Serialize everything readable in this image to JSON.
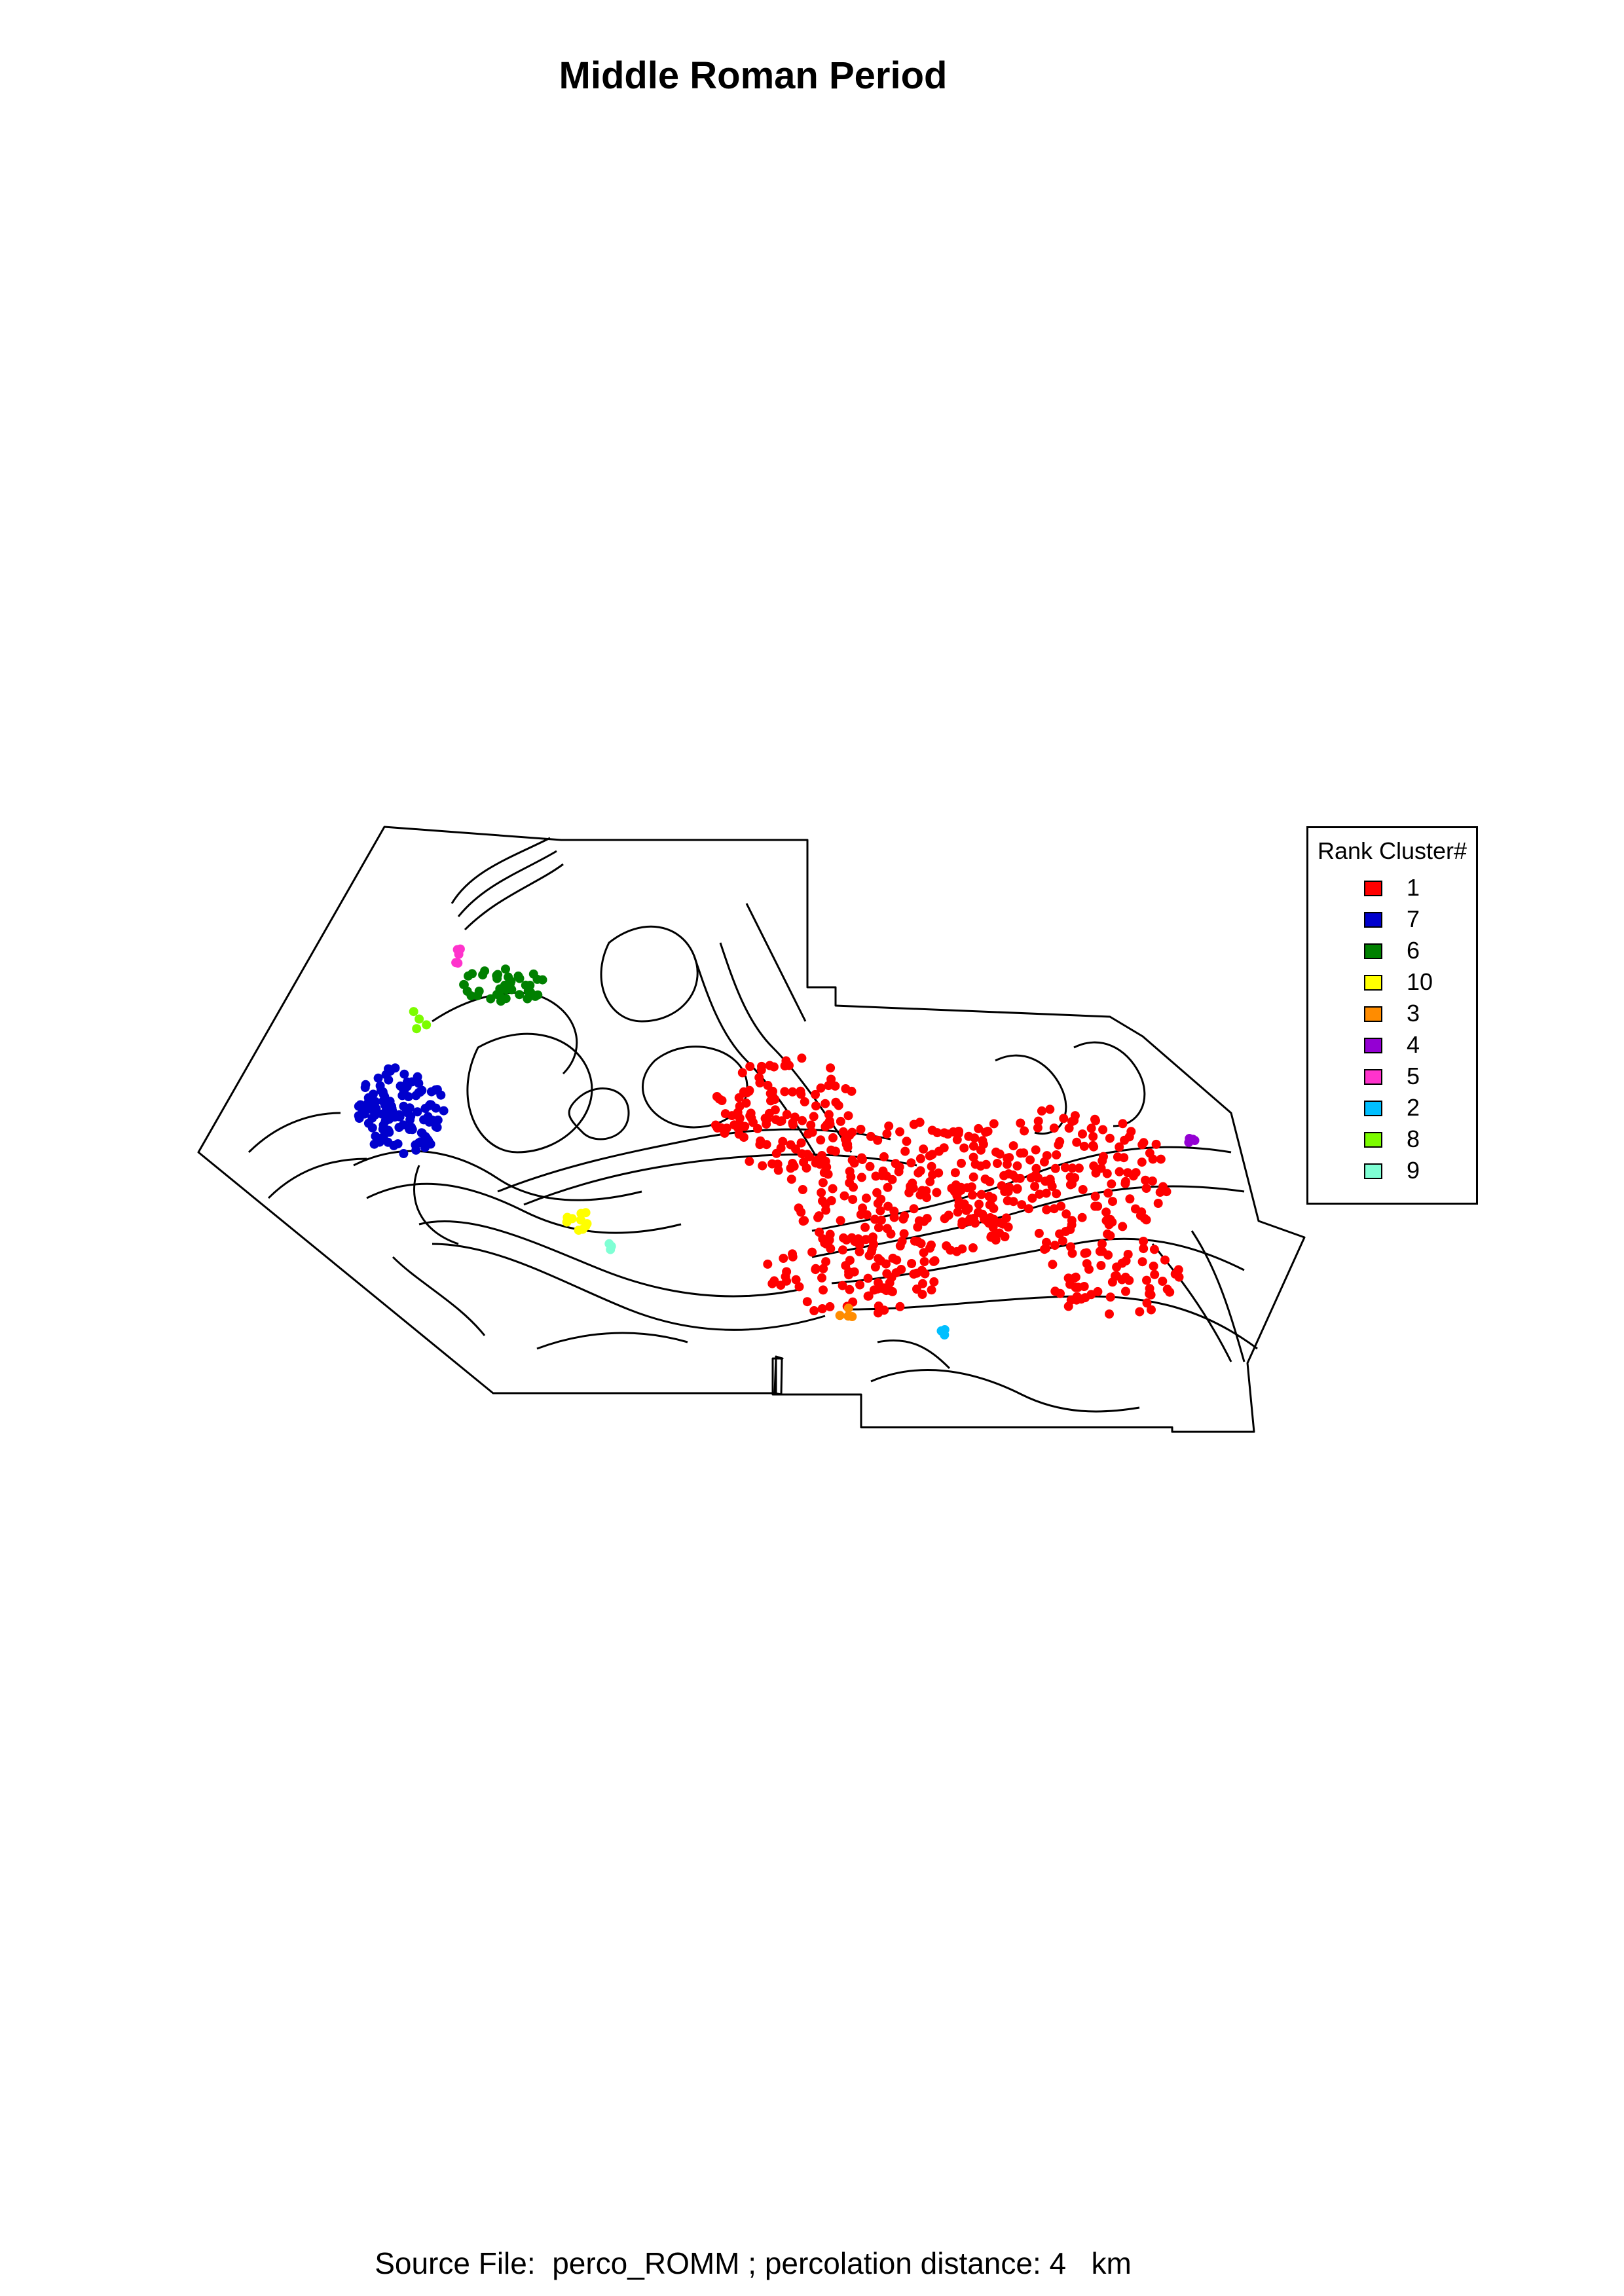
{
  "title": "Middle Roman Period",
  "footer": "Source File:  perco_ROMM ; percolation distance: 4   km",
  "legend": {
    "title": "Rank Cluster#",
    "items": [
      {
        "label": "1",
        "color": "#ff0000"
      },
      {
        "label": "7",
        "color": "#0000cd"
      },
      {
        "label": "6",
        "color": "#008000"
      },
      {
        "label": "10",
        "color": "#ffff00"
      },
      {
        "label": "3",
        "color": "#ff8c00"
      },
      {
        "label": "4",
        "color": "#9400d3"
      },
      {
        "label": "5",
        "color": "#ff33cc"
      },
      {
        "label": "2",
        "color": "#00bfff"
      },
      {
        "label": "8",
        "color": "#7cfc00"
      },
      {
        "label": "9",
        "color": "#7fffd4"
      }
    ]
  }
}
